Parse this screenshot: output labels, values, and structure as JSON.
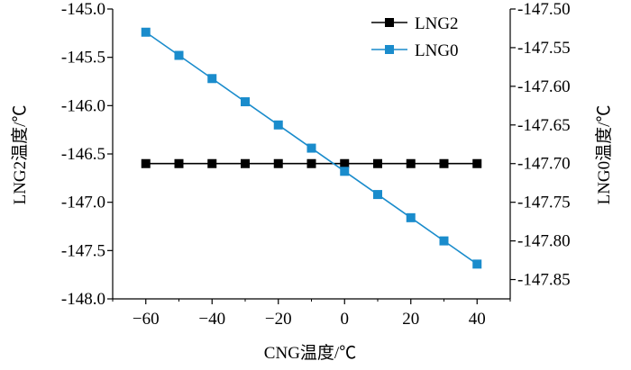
{
  "chart_data": {
    "type": "line",
    "xlabel": "CNG温度/℃",
    "ylabel_left": "LNG2温度/℃",
    "ylabel_right": "LNG0温度/℃",
    "xlim": [
      -70,
      50
    ],
    "ylim_left": [
      -148.0,
      -145.0
    ],
    "ylim_right": [
      -147.875,
      -147.5
    ],
    "x_ticks": [
      -60,
      -40,
      -20,
      0,
      20,
      40
    ],
    "x_tick_labels": [
      "−60",
      "−40",
      "−20",
      "0",
      "20",
      "40"
    ],
    "y_left_ticks": [
      -145.0,
      -145.5,
      -146.0,
      -146.5,
      -147.0,
      -147.5,
      -148.0
    ],
    "y_left_tick_labels": [
      "-145.0",
      "-145.5",
      "-146.0",
      "-146.5",
      "-147.0",
      "-147.5",
      "-148.0"
    ],
    "y_right_ticks": [
      -147.5,
      -147.55,
      -147.6,
      -147.65,
      -147.7,
      -147.75,
      -147.8,
      -147.85
    ],
    "y_right_tick_labels": [
      "-147.50",
      "-147.55",
      "-147.60",
      "-147.65",
      "-147.70",
      "-147.75",
      "-147.80",
      "-147.85"
    ],
    "legend_position": "top-right",
    "grid": false,
    "x": [
      -60,
      -50,
      -40,
      -30,
      -20,
      -10,
      0,
      10,
      20,
      30,
      40
    ],
    "series": [
      {
        "name": "LNG2",
        "axis": "left",
        "color": "#000000",
        "marker": "square",
        "values": [
          -146.6,
          -146.6,
          -146.6,
          -146.6,
          -146.6,
          -146.6,
          -146.6,
          -146.6,
          -146.6,
          -146.6,
          -146.6
        ]
      },
      {
        "name": "LNG0",
        "axis": "right",
        "color": "#1a8ccc",
        "marker": "square",
        "values": [
          -147.53,
          -147.56,
          -147.59,
          -147.62,
          -147.65,
          -147.68,
          -147.71,
          -147.74,
          -147.77,
          -147.8,
          -147.83
        ]
      }
    ]
  }
}
